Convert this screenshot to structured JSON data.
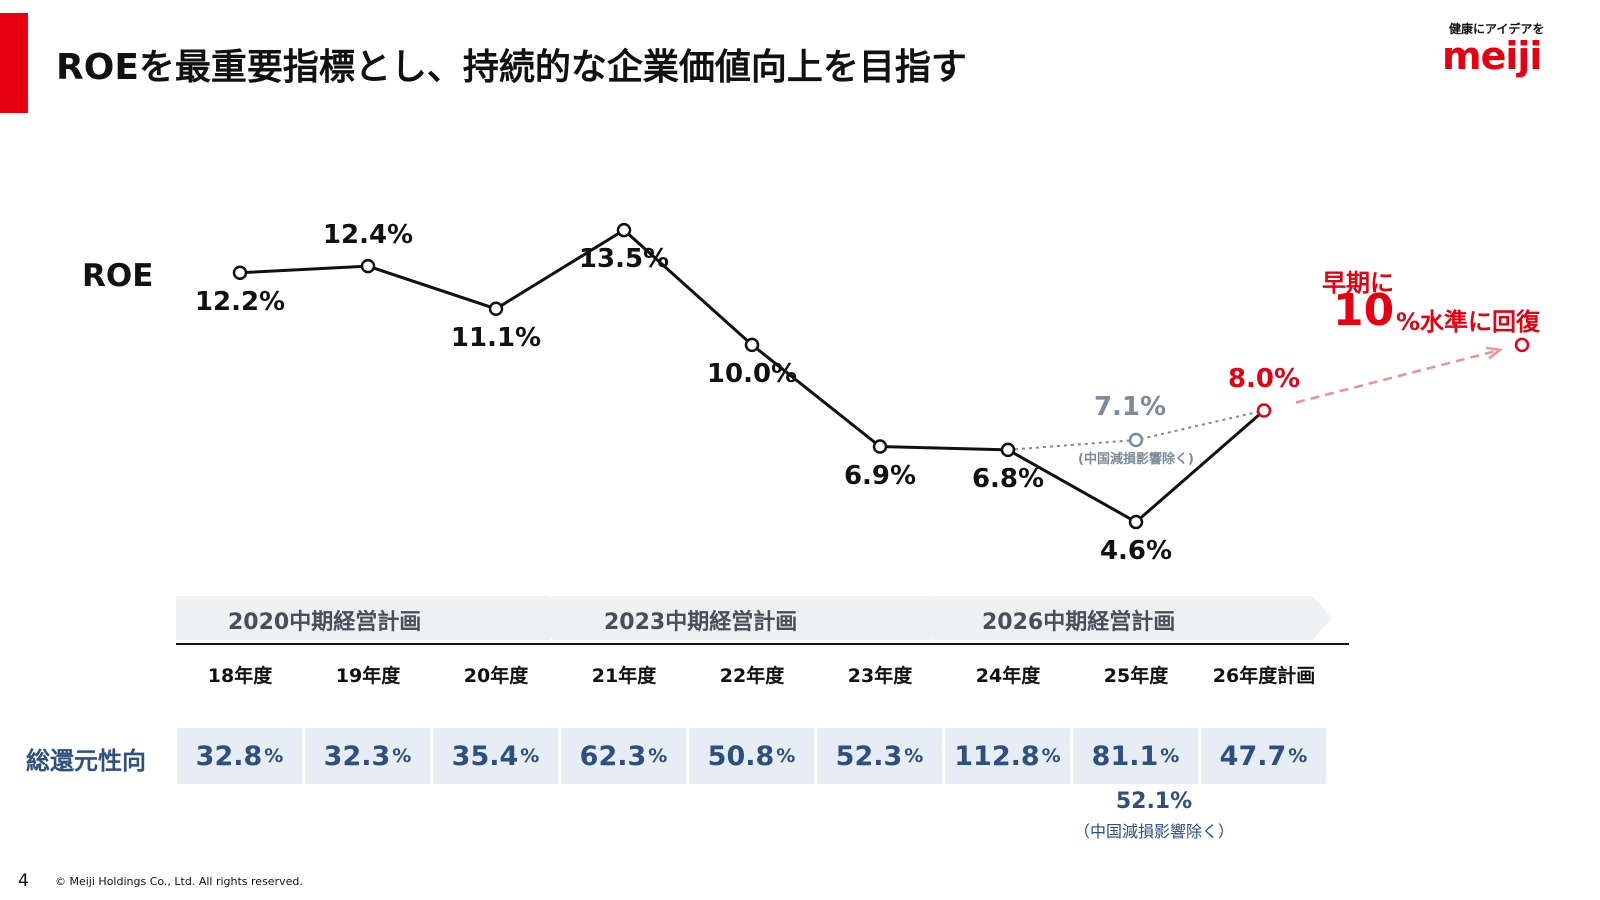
{
  "header": {
    "title": "ROEを最重要指標とし、持続的な企業価値向上を目指す",
    "brand_tagline": "健康にアイデアを",
    "brand_logo": "meiji",
    "accent_color": "#e60012"
  },
  "chart_data": {
    "type": "line",
    "series_label": "ROE",
    "categories": [
      "18年度",
      "19年度",
      "20年度",
      "21年度",
      "22年度",
      "23年度",
      "24年度",
      "25年度",
      "26年度計画"
    ],
    "series": [
      {
        "name": "ROE",
        "values": [
          12.2,
          12.4,
          11.1,
          13.5,
          10.0,
          6.9,
          6.8,
          4.6,
          8.0
        ],
        "labels": [
          "12.2%",
          "12.4%",
          "11.1%",
          "13.5%",
          "10.0%",
          "6.9%",
          "6.8%",
          "4.6%",
          "8.0%"
        ],
        "color": "#111111",
        "plan_color": "#e60012"
      },
      {
        "values": [
          null,
          null,
          null,
          null,
          null,
          null,
          6.8,
          7.1,
          8.0
        ],
        "labels": [
          "",
          "",
          "",
          "",
          "",
          "",
          "",
          "7.1%",
          ""
        ],
        "note": "(中国減損影響除く)",
        "color": "#7b8b97",
        "style": "dotted"
      }
    ],
    "target": {
      "value": 10.0,
      "line1": "早期に",
      "big": "10",
      "rest": "%水準に回復",
      "color": "#e60012",
      "style": "dashed"
    }
  },
  "plans": [
    "2020中期経営計画",
    "2023中期経営計画",
    "2026中期経営計画"
  ],
  "payout": {
    "heading": "総還元性向",
    "values": [
      "32.8",
      "32.3",
      "35.4",
      "62.3",
      "50.8",
      "52.3",
      "112.8",
      "81.1",
      "47.7"
    ],
    "unit": "%",
    "alt_value": "52.1%",
    "alt_note": "（中国減損影響除く）",
    "cell_color": "#e6edf5",
    "text_color": "#2f4f7f"
  },
  "footer": {
    "page_number": "4",
    "copyright": "© Meiji Holdings Co., Ltd. All rights reserved."
  }
}
